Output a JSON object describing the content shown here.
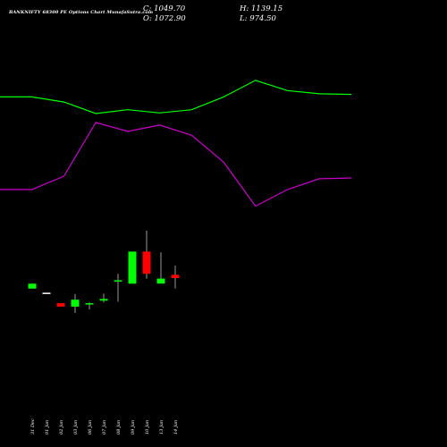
{
  "header": {
    "title": "BANKNIFTY 68300  PE Options Chart MunafaSutra.com",
    "close_label": "C: 1049.70",
    "open_label": "O: 1072.90",
    "high_label": "H: 1139.15",
    "low_label": "L: 974.50"
  },
  "colors": {
    "background": "#000000",
    "up": "#00ff00",
    "down": "#ff0000",
    "wick": "#ffffff",
    "line1": "#00ff00",
    "line2": "#cc00cc",
    "text": "#ffffff"
  },
  "chart_data": {
    "type": "candlestick",
    "categories": [
      "31 Dec",
      "01 Jan",
      "02 Jan",
      "03 Jan",
      "06 Jan",
      "07 Jan",
      "08 Jan",
      "09 Jan",
      "10 Jan",
      "13 Jan",
      "14 Jan"
    ],
    "candles": [
      {
        "date": "31 Dec",
        "open": 975,
        "high": 1012,
        "low": 975,
        "close": 1010,
        "direction": "up"
      },
      {
        "date": "01 Jan",
        "open": 940,
        "high": 942,
        "low": 936,
        "close": 938,
        "direction": "flat"
      },
      {
        "date": "02 Jan",
        "open": 870,
        "high": 870,
        "low": 845,
        "close": 845,
        "direction": "down"
      },
      {
        "date": "03 Jan",
        "open": 845,
        "high": 935,
        "low": 800,
        "close": 895,
        "direction": "up"
      },
      {
        "date": "06 Jan",
        "open": 858,
        "high": 875,
        "low": 825,
        "close": 865,
        "direction": "up"
      },
      {
        "date": "07 Jan",
        "open": 888,
        "high": 938,
        "low": 875,
        "close": 900,
        "direction": "up"
      },
      {
        "date": "08 Jan",
        "open": 1029,
        "high": 1080,
        "low": 880,
        "close": 1029,
        "direction": "up"
      },
      {
        "date": "09 Jan",
        "open": 1010,
        "high": 1240,
        "low": 1010,
        "close": 1240,
        "direction": "up"
      },
      {
        "date": "10 Jan",
        "open": 1240,
        "high": 1390,
        "low": 1045,
        "close": 1080,
        "direction": "down"
      },
      {
        "date": "13 Jan",
        "open": 1010,
        "high": 1235,
        "low": 1010,
        "close": 1046,
        "direction": "up"
      },
      {
        "date": "14 Jan",
        "open": 1072.9,
        "high": 1139.15,
        "low": 974.5,
        "close": 1049.7,
        "direction": "down"
      }
    ],
    "line1": [
      2000,
      2000,
      1960,
      1870,
      1900,
      1875,
      1900,
      2000,
      2130,
      2050,
      2025,
      2020
    ],
    "line2": [
      1275,
      1275,
      1380,
      1800,
      1730,
      1780,
      1700,
      1490,
      1145,
      1275,
      1360,
      1365
    ],
    "line_points": 12,
    "grid": false,
    "legend": "none"
  }
}
